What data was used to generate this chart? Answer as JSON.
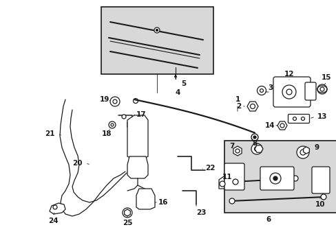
{
  "bg_color": "#ffffff",
  "line_color": "#1a1a1a",
  "box_fill": "#d8d8d8",
  "fig_width": 4.89,
  "fig_height": 3.6,
  "dpi": 100
}
